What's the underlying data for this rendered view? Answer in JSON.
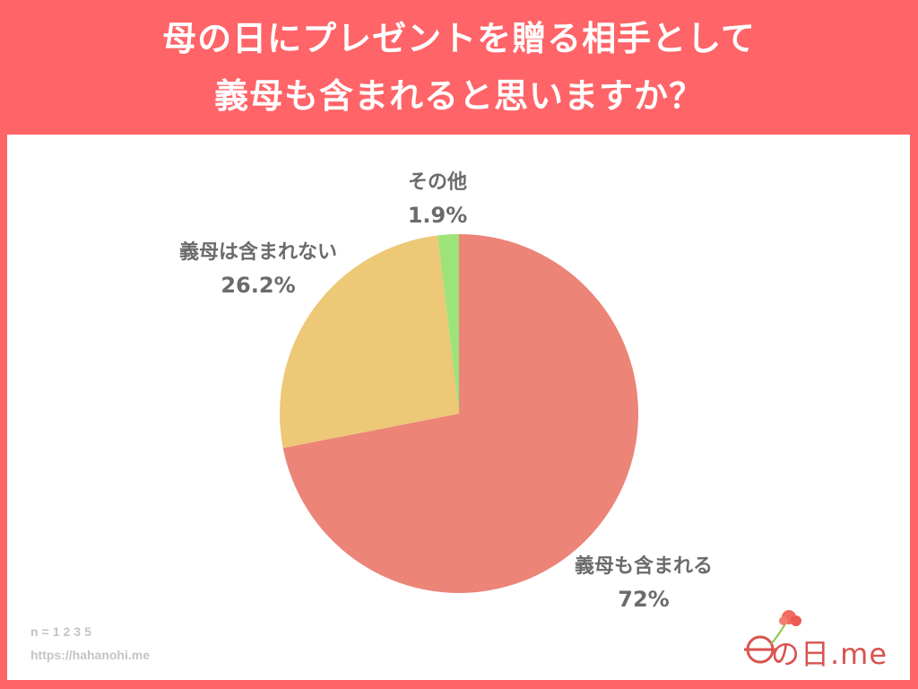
{
  "title": {
    "line1": "母の日にプレゼントを贈る相手として",
    "line2": "義母も含まれると思いますか？"
  },
  "colors": {
    "background": "#FF6468",
    "panel": "#FFFFFF",
    "label_text": "#6B6B6B"
  },
  "labels": {
    "included": {
      "name": "義母も含まれる",
      "pct": "72%"
    },
    "not_included": {
      "name": "義母は含まれない",
      "pct": "26.2%"
    },
    "other": {
      "name": "その他",
      "pct": "1.9%"
    }
  },
  "footer": {
    "sample": "n=1235",
    "url": "https://hahanohi.me"
  },
  "logo": {
    "text": "の日.me",
    "icon": "carnation-icon"
  },
  "chart_data": {
    "type": "pie",
    "title": "母の日にプレゼントを贈る相手として義母も含まれると思いますか？",
    "categories": [
      "義母も含まれる",
      "義母は含まれない",
      "その他"
    ],
    "values": [
      72,
      26.2,
      1.9
    ],
    "unit": "%",
    "colors": [
      "#EC8478",
      "#ECC877",
      "#9DE37A"
    ],
    "start_angle": "12 o'clock, clockwise",
    "n": 1235,
    "legend": "none (direct labels)"
  }
}
